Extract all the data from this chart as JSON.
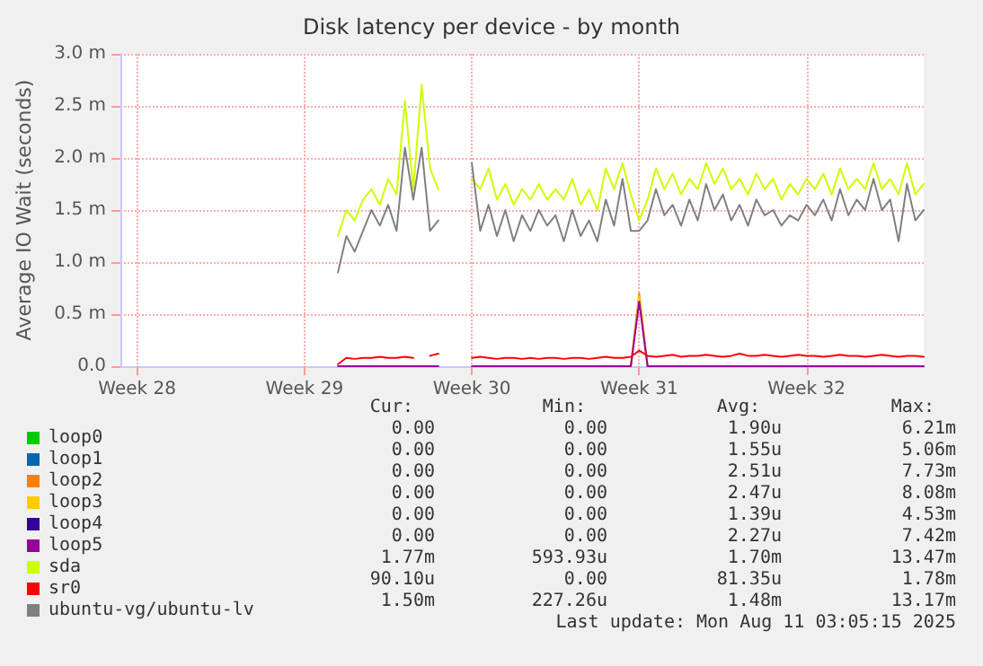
{
  "chart_data": {
    "type": "line",
    "title": "Disk latency per device - by month",
    "ylabel": "Average IO Wait (seconds)",
    "categories": [
      null,
      null,
      "Week 28",
      null,
      null,
      null,
      null,
      null,
      null,
      null,
      null,
      null,
      null,
      null,
      null,
      null,
      null,
      null,
      null,
      null,
      null,
      null,
      "Week 29",
      null,
      null,
      null,
      null,
      null,
      null,
      null,
      null,
      null,
      null,
      null,
      null,
      null,
      null,
      null,
      null,
      null,
      null,
      null,
      "Week 30",
      null,
      null,
      null,
      null,
      null,
      null,
      null,
      null,
      null,
      null,
      null,
      null,
      null,
      null,
      null,
      null,
      null,
      null,
      null,
      "Week 31",
      null,
      null,
      null,
      null,
      null,
      null,
      null,
      null,
      null,
      null,
      null,
      null,
      null,
      null,
      null,
      null,
      null,
      null,
      null,
      "Week 32",
      null,
      null,
      null,
      null,
      null,
      null,
      null,
      null,
      null,
      null,
      null,
      null,
      null,
      null
    ],
    "series": [
      {
        "name": "loop0",
        "color": "#00cc00",
        "values": [
          null,
          null,
          null,
          null,
          null,
          null,
          null,
          null,
          null,
          null,
          null,
          null,
          null,
          null,
          null,
          null,
          null,
          null,
          null,
          null,
          null,
          null,
          null,
          null,
          null,
          null,
          null,
          null,
          null,
          null,
          null,
          null,
          null,
          null,
          null,
          null,
          null,
          null,
          null,
          null,
          null,
          null,
          null,
          null,
          null,
          null,
          null,
          null,
          null,
          null,
          null,
          null,
          null,
          null,
          null,
          null,
          null,
          null,
          null,
          null,
          null,
          null,
          null,
          null,
          null,
          null,
          null,
          null,
          null,
          null,
          null,
          null,
          null,
          null,
          null,
          null,
          null,
          null,
          null,
          null,
          null,
          null,
          null,
          null,
          null,
          null,
          null,
          null,
          null,
          null,
          null,
          null,
          null,
          null,
          null,
          null,
          null
        ]
      },
      {
        "name": "loop1",
        "color": "#0066b3",
        "values": [
          null,
          null,
          null,
          null,
          null,
          null,
          null,
          null,
          null,
          null,
          null,
          null,
          null,
          null,
          null,
          null,
          null,
          null,
          null,
          null,
          null,
          null,
          null,
          null,
          null,
          null,
          null,
          null,
          null,
          null,
          null,
          null,
          null,
          null,
          null,
          null,
          null,
          null,
          null,
          null,
          null,
          null,
          null,
          null,
          null,
          null,
          null,
          null,
          null,
          null,
          null,
          null,
          null,
          null,
          null,
          null,
          null,
          null,
          null,
          null,
          null,
          null,
          null,
          null,
          null,
          null,
          null,
          null,
          null,
          null,
          null,
          null,
          null,
          null,
          null,
          null,
          null,
          null,
          null,
          null,
          null,
          null,
          null,
          null,
          null,
          null,
          null,
          null,
          null,
          null,
          null,
          null,
          null,
          null,
          null,
          null,
          null
        ]
      },
      {
        "name": "loop2",
        "color": "#ff8000",
        "values": [
          null,
          null,
          null,
          null,
          null,
          null,
          null,
          null,
          null,
          null,
          null,
          null,
          null,
          null,
          null,
          null,
          null,
          null,
          null,
          null,
          null,
          null,
          null,
          null,
          null,
          null,
          null,
          null,
          null,
          null,
          null,
          null,
          null,
          null,
          null,
          null,
          null,
          null,
          null,
          null,
          null,
          null,
          null,
          null,
          null,
          null,
          null,
          null,
          null,
          null,
          null,
          null,
          null,
          null,
          null,
          null,
          null,
          null,
          null,
          null,
          null,
          0,
          0.7,
          0,
          null,
          null,
          null,
          null,
          null,
          null,
          null,
          null,
          null,
          null,
          null,
          null,
          null,
          null,
          null,
          null,
          null,
          null,
          null,
          null,
          null,
          null,
          null,
          null,
          null,
          null,
          null,
          null,
          null,
          null,
          null,
          null,
          null
        ]
      },
      {
        "name": "loop3",
        "color": "#ffcc00",
        "values": [
          null,
          null,
          null,
          null,
          null,
          null,
          null,
          null,
          null,
          null,
          null,
          null,
          null,
          null,
          null,
          null,
          null,
          null,
          null,
          null,
          null,
          null,
          null,
          null,
          null,
          null,
          null,
          null,
          null,
          null,
          null,
          null,
          null,
          null,
          null,
          null,
          null,
          null,
          null,
          null,
          null,
          null,
          null,
          null,
          null,
          null,
          null,
          null,
          null,
          null,
          null,
          null,
          null,
          null,
          null,
          null,
          null,
          null,
          null,
          null,
          null,
          0,
          0.67,
          0,
          null,
          null,
          null,
          null,
          null,
          null,
          null,
          null,
          null,
          null,
          null,
          null,
          null,
          null,
          null,
          null,
          null,
          null,
          null,
          null,
          null,
          null,
          null,
          null,
          null,
          null,
          null,
          null,
          null,
          null,
          null,
          null,
          null
        ]
      },
      {
        "name": "loop4",
        "color": "#330099",
        "values": [
          null,
          null,
          null,
          null,
          null,
          null,
          null,
          null,
          null,
          null,
          null,
          null,
          null,
          null,
          null,
          null,
          null,
          null,
          null,
          null,
          null,
          null,
          null,
          null,
          null,
          null,
          null,
          null,
          null,
          null,
          null,
          null,
          null,
          null,
          null,
          null,
          null,
          null,
          null,
          null,
          null,
          null,
          null,
          null,
          null,
          null,
          null,
          null,
          null,
          null,
          null,
          null,
          null,
          null,
          null,
          null,
          null,
          null,
          null,
          null,
          null,
          null,
          null,
          null,
          null,
          null,
          null,
          null,
          null,
          null,
          null,
          null,
          null,
          null,
          null,
          null,
          null,
          null,
          null,
          null,
          null,
          null,
          null,
          null,
          null,
          null,
          null,
          null,
          null,
          null,
          null,
          null,
          null,
          null,
          null,
          null,
          null
        ]
      },
      {
        "name": "loop5",
        "color": "#990099",
        "values": [
          null,
          null,
          null,
          null,
          null,
          null,
          null,
          null,
          null,
          null,
          null,
          null,
          null,
          null,
          null,
          null,
          null,
          null,
          null,
          null,
          null,
          null,
          null,
          null,
          null,
          null,
          0,
          0,
          0,
          0,
          0,
          0,
          0,
          0,
          0,
          0,
          0,
          0,
          0,
          null,
          null,
          null,
          0,
          0,
          0,
          0,
          0,
          0,
          0,
          0,
          0,
          0,
          0,
          0,
          0,
          0,
          0,
          0,
          0,
          0,
          0,
          0,
          0.62,
          0,
          0,
          0,
          0,
          0,
          0,
          0,
          0,
          0,
          0,
          0,
          0,
          0,
          0,
          0,
          0,
          0,
          0,
          0,
          0,
          0,
          0,
          0,
          0,
          0,
          0,
          0,
          0,
          0,
          0,
          0,
          0,
          0,
          0
        ]
      },
      {
        "name": "sda",
        "color": "#ccff00",
        "values": [
          null,
          null,
          null,
          null,
          null,
          null,
          null,
          null,
          null,
          null,
          null,
          null,
          null,
          null,
          null,
          null,
          null,
          null,
          null,
          null,
          null,
          null,
          null,
          null,
          null,
          null,
          1.25,
          1.5,
          1.4,
          1.6,
          1.7,
          1.55,
          1.8,
          1.65,
          2.55,
          1.7,
          2.7,
          1.9,
          1.7,
          null,
          null,
          null,
          1.8,
          1.7,
          1.9,
          1.6,
          1.75,
          1.55,
          1.7,
          1.6,
          1.75,
          1.6,
          1.7,
          1.6,
          1.8,
          1.55,
          1.7,
          1.5,
          1.9,
          1.7,
          1.95,
          1.65,
          1.4,
          1.6,
          1.9,
          1.7,
          1.85,
          1.65,
          1.8,
          1.7,
          1.95,
          1.75,
          1.9,
          1.7,
          1.8,
          1.65,
          1.85,
          1.7,
          1.8,
          1.6,
          1.75,
          1.65,
          1.8,
          1.7,
          1.85,
          1.65,
          1.9,
          1.7,
          1.8,
          1.7,
          1.95,
          1.7,
          1.8,
          1.65,
          1.95,
          1.65,
          1.75
        ]
      },
      {
        "name": "sr0",
        "color": "#ff0000",
        "values": [
          null,
          null,
          null,
          null,
          null,
          null,
          null,
          null,
          null,
          null,
          null,
          null,
          null,
          null,
          null,
          null,
          null,
          null,
          null,
          null,
          null,
          null,
          null,
          null,
          null,
          null,
          0.02,
          0.08,
          0.07,
          0.08,
          0.08,
          0.09,
          0.08,
          0.08,
          0.09,
          0.08,
          null,
          0.1,
          0.12,
          null,
          null,
          null,
          0.08,
          0.09,
          0.08,
          0.07,
          0.08,
          0.08,
          0.07,
          0.08,
          0.07,
          0.08,
          0.08,
          0.07,
          0.08,
          0.08,
          0.07,
          0.08,
          0.09,
          0.08,
          0.08,
          0.09,
          0.15,
          0.1,
          0.09,
          0.1,
          0.11,
          0.09,
          0.1,
          0.1,
          0.11,
          0.1,
          0.09,
          0.1,
          0.12,
          0.1,
          0.1,
          0.11,
          0.1,
          0.09,
          0.1,
          0.11,
          0.1,
          0.1,
          0.09,
          0.1,
          0.11,
          0.1,
          0.1,
          0.09,
          0.1,
          0.11,
          0.1,
          0.09,
          0.1,
          0.1,
          0.09
        ]
      },
      {
        "name": "ubuntu-vg/ubuntu-lv",
        "color": "#808080",
        "values": [
          null,
          null,
          null,
          null,
          null,
          null,
          null,
          null,
          null,
          null,
          null,
          null,
          null,
          null,
          null,
          null,
          null,
          null,
          null,
          null,
          null,
          null,
          null,
          null,
          null,
          null,
          0.9,
          1.25,
          1.1,
          1.3,
          1.5,
          1.35,
          1.55,
          1.3,
          2.1,
          1.6,
          2.1,
          1.3,
          1.4,
          null,
          null,
          null,
          1.95,
          1.3,
          1.55,
          1.25,
          1.5,
          1.2,
          1.45,
          1.3,
          1.5,
          1.35,
          1.45,
          1.2,
          1.5,
          1.25,
          1.4,
          1.2,
          1.6,
          1.35,
          1.8,
          1.3,
          1.3,
          1.4,
          1.7,
          1.45,
          1.55,
          1.35,
          1.6,
          1.4,
          1.75,
          1.5,
          1.65,
          1.4,
          1.55,
          1.35,
          1.6,
          1.45,
          1.5,
          1.35,
          1.45,
          1.4,
          1.55,
          1.45,
          1.6,
          1.4,
          1.7,
          1.45,
          1.6,
          1.5,
          1.8,
          1.5,
          1.6,
          1.2,
          1.75,
          1.4,
          1.5
        ]
      }
    ],
    "ylim": [
      0,
      3
    ],
    "yticks": [
      {
        "value": 0,
        "label": "0.0"
      },
      {
        "value": 0.5,
        "label": "0.5 m"
      },
      {
        "value": 1,
        "label": "1.0 m"
      },
      {
        "value": 1.5,
        "label": "1.5 m"
      },
      {
        "value": 2,
        "label": "2.0 m"
      },
      {
        "value": 2.5,
        "label": "2.5 m"
      },
      {
        "value": 3,
        "label": "3.0 m"
      }
    ],
    "grid": true,
    "legend": "bottom",
    "marker": "none",
    "line_style": "solid",
    "annotations": [
      "Cur:",
      "Min:",
      "Avg:",
      "Max:",
      "0.00",
      "0.00",
      "1.90u",
      "6.21m",
      "0.00",
      "0.00",
      "1.55u",
      "5.06m",
      "0.00",
      "0.00",
      "2.51u",
      "7.73m",
      "0.00",
      "0.00",
      "2.47u",
      "8.08m",
      "0.00",
      "0.00",
      "1.39u",
      "4.53m",
      "0.00",
      "0.00",
      "2.27u",
      "7.42m",
      "1.77m",
      "593.93u",
      "1.70m",
      "13.47m",
      "90.10u",
      "0.00",
      "81.35u",
      "1.78m",
      "1.50m",
      "227.26u",
      "1.48m",
      "13.17m",
      "Last update: Mon Aug 11 03:05:15 2025"
    ]
  }
}
